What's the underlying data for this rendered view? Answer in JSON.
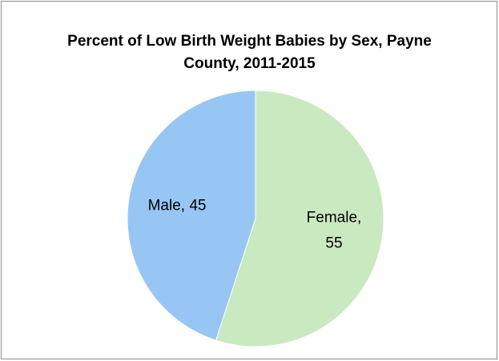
{
  "chart_data": {
    "type": "pie",
    "title": "Percent of Low Birth Weight Babies by Sex, Payne County, 2011-2015",
    "categories": [
      "Female",
      "Male"
    ],
    "values": [
      55,
      45
    ],
    "value_labels": [
      "Female, 55",
      "Male, 45"
    ],
    "colors": [
      "#c9e9c0",
      "#98c6f4"
    ]
  }
}
